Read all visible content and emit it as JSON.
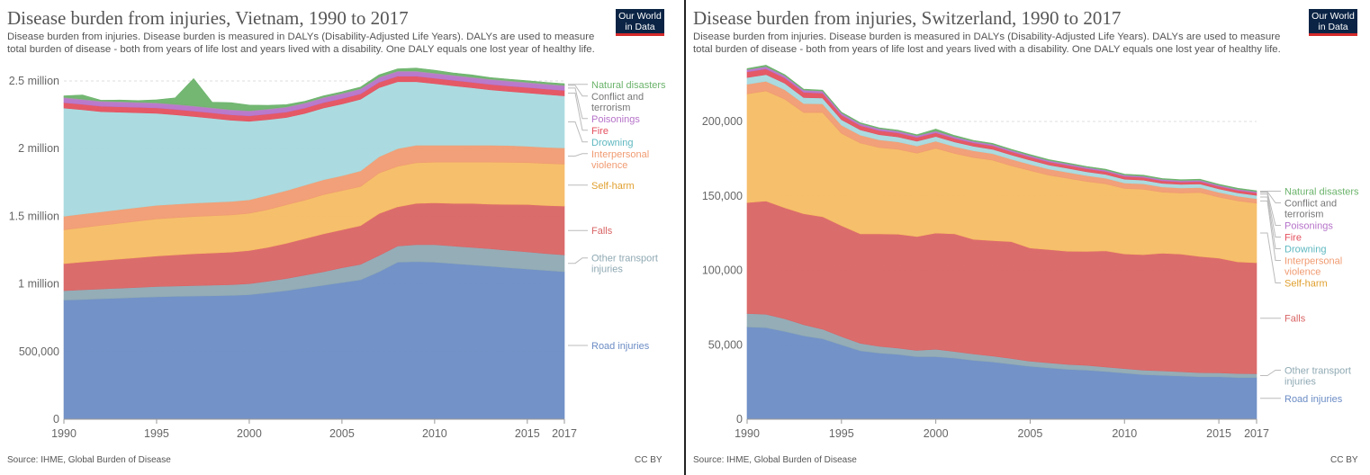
{
  "chart_data": [
    {
      "type": "area",
      "stacked": true,
      "title": "Disease burden from injuries, Vietnam, 1990 to 2017",
      "subtitle": "Disease burden from injuries. Disease burden is measured in DALYs (Disability-Adjusted Life Years). DALYs are used to measure total burden of disease - both from years of life lost and years lived with a disability. One DALY equals one lost year of healthy life.",
      "source": "Source: IHME, Global Burden of Disease",
      "license": "CC BY",
      "logo": [
        "Our World",
        "in Data"
      ],
      "ylim": [
        0,
        2600000
      ],
      "yticks": [
        0,
        500000,
        1000000,
        1500000,
        2000000,
        2500000
      ],
      "ytick_labels": [
        "0",
        "500,000",
        "1 million",
        "1.5 million",
        "2 million",
        "2.5 million"
      ],
      "xlim": [
        1990,
        2017
      ],
      "xticks": [
        1990,
        1995,
        2000,
        2005,
        2010,
        2015,
        2017
      ],
      "xtick_labels": [
        "1990",
        "1995",
        "2000",
        "2005",
        "2010",
        "2015",
        "2017"
      ],
      "grid": true,
      "x": [
        1990,
        1991,
        1992,
        1993,
        1994,
        1995,
        1996,
        1997,
        1998,
        1999,
        2000,
        2001,
        2002,
        2003,
        2004,
        2005,
        2006,
        2007,
        2008,
        2009,
        2010,
        2011,
        2012,
        2013,
        2014,
        2015,
        2016,
        2017
      ],
      "series": [
        {
          "name": "Road injuries",
          "color": "#6b8cc4",
          "values": [
            880000,
            885000,
            890000,
            895000,
            900000,
            905000,
            908000,
            910000,
            912000,
            915000,
            920000,
            935000,
            950000,
            970000,
            990000,
            1010000,
            1030000,
            1090000,
            1160000,
            1165000,
            1160000,
            1150000,
            1140000,
            1130000,
            1120000,
            1110000,
            1100000,
            1090000
          ]
        },
        {
          "name": "Other transport injuries",
          "color": "#8fa9b3",
          "values": [
            70000,
            72000,
            73000,
            74000,
            75000,
            76000,
            77000,
            78000,
            79000,
            80000,
            82000,
            85000,
            90000,
            95000,
            100000,
            110000,
            115000,
            120000,
            120000,
            125000,
            130000,
            130000,
            130000,
            130000,
            128000,
            127000,
            125000,
            125000
          ]
        },
        {
          "name": "Falls",
          "color": "#d96464",
          "values": [
            200000,
            205000,
            210000,
            215000,
            220000,
            225000,
            230000,
            235000,
            238000,
            240000,
            245000,
            250000,
            260000,
            270000,
            280000,
            280000,
            285000,
            310000,
            290000,
            305000,
            310000,
            315000,
            325000,
            330000,
            340000,
            350000,
            355000,
            360000
          ]
        },
        {
          "name": "Self-harm",
          "color": "#f6bc64",
          "values": [
            250000,
            255000,
            260000,
            265000,
            270000,
            275000,
            275000,
            275000,
            275000,
            275000,
            275000,
            280000,
            285000,
            285000,
            290000,
            290000,
            290000,
            300000,
            300000,
            300000,
            300000,
            305000,
            305000,
            310000,
            310000,
            310000,
            310000,
            310000
          ]
        },
        {
          "name": "Interpersonal violence",
          "color": "#f09b72",
          "values": [
            100000,
            100000,
            100000,
            100000,
            100000,
            100000,
            100000,
            100000,
            100000,
            100000,
            100000,
            105000,
            105000,
            110000,
            110000,
            110000,
            115000,
            120000,
            130000,
            130000,
            125000,
            125000,
            125000,
            125000,
            125000,
            120000,
            120000,
            120000
          ]
        },
        {
          "name": "Drowning",
          "color": "#a6d9de",
          "values": [
            800000,
            770000,
            740000,
            720000,
            700000,
            680000,
            660000,
            640000,
            620000,
            600000,
            580000,
            560000,
            540000,
            530000,
            530000,
            530000,
            530000,
            510000,
            495000,
            470000,
            455000,
            440000,
            425000,
            410000,
            400000,
            395000,
            390000,
            385000
          ]
        },
        {
          "name": "Fire",
          "color": "#e4505e",
          "values": [
            40000,
            40000,
            40000,
            40000,
            40000,
            40000,
            40000,
            40000,
            40000,
            40000,
            40000,
            40000,
            40000,
            40000,
            40000,
            40000,
            40000,
            40000,
            40000,
            40000,
            40000,
            40000,
            40000,
            40000,
            40000,
            40000,
            40000,
            40000
          ]
        },
        {
          "name": "Poisonings",
          "color": "#b673c9",
          "values": [
            35000,
            35000,
            35000,
            35000,
            35000,
            35000,
            35000,
            35000,
            35000,
            35000,
            35000,
            35000,
            35000,
            35000,
            35000,
            35000,
            35000,
            35000,
            35000,
            35000,
            35000,
            35000,
            35000,
            35000,
            35000,
            35000,
            35000,
            35000
          ]
        },
        {
          "name": "Conflict and terrorism",
          "color": "#a0a0a0",
          "values": [
            5000,
            5000,
            5000,
            5000,
            5000,
            5000,
            5000,
            5000,
            5000,
            5000,
            5000,
            5000,
            5000,
            5000,
            5000,
            5000,
            5000,
            5000,
            5000,
            5000,
            5000,
            5000,
            5000,
            5000,
            5000,
            5000,
            5000,
            5000
          ]
        },
        {
          "name": "Natural disasters",
          "color": "#6bb36b",
          "values": [
            10000,
            30000,
            5000,
            10000,
            10000,
            20000,
            45000,
            200000,
            40000,
            50000,
            40000,
            25000,
            15000,
            10000,
            10000,
            10000,
            10000,
            15000,
            15000,
            20000,
            20000,
            15000,
            15000,
            10000,
            10000,
            10000,
            10000,
            10000
          ]
        }
      ],
      "legend_placement": "right"
    },
    {
      "type": "area",
      "stacked": true,
      "title": "Disease burden from injuries, Switzerland, 1990 to 2017",
      "subtitle": "Disease burden from injuries. Disease burden is measured in DALYs (Disability-Adjusted Life Years). DALYs are used to measure total burden of disease - both from years of life lost and years lived with a disability. One DALY equals one lost year of healthy life.",
      "source": "Source: IHME, Global Burden of Disease",
      "license": "CC BY",
      "logo": [
        "Our World",
        "in Data"
      ],
      "ylim": [
        0,
        235000
      ],
      "yticks": [
        0,
        50000,
        100000,
        150000,
        200000
      ],
      "ytick_labels": [
        "0",
        "50,000",
        "100,000",
        "150,000",
        "200,000"
      ],
      "xlim": [
        1990,
        2017
      ],
      "xticks": [
        1990,
        1995,
        2000,
        2005,
        2010,
        2015,
        2017
      ],
      "xtick_labels": [
        "1990",
        "1995",
        "2000",
        "2005",
        "2010",
        "2015",
        "2017"
      ],
      "grid": true,
      "x": [
        1990,
        1991,
        1992,
        1993,
        1994,
        1995,
        1996,
        1997,
        1998,
        1999,
        2000,
        2001,
        2002,
        2003,
        2004,
        2005,
        2006,
        2007,
        2008,
        2009,
        2010,
        2011,
        2012,
        2013,
        2014,
        2015,
        2016,
        2017
      ],
      "series": [
        {
          "name": "Road injuries",
          "color": "#6b8cc4",
          "values": [
            62000,
            61500,
            59000,
            56000,
            54000,
            50000,
            46000,
            44500,
            43500,
            42000,
            42000,
            41000,
            39500,
            38500,
            37000,
            35500,
            34500,
            33500,
            33000,
            32000,
            31000,
            30000,
            29500,
            29000,
            28500,
            28500,
            28000,
            28000
          ]
        },
        {
          "name": "Other transport injuries",
          "color": "#8fa9b3",
          "values": [
            9000,
            9000,
            8500,
            7500,
            6500,
            5500,
            5000,
            4500,
            4300,
            4200,
            5000,
            4500,
            4300,
            4000,
            3800,
            3500,
            3400,
            3300,
            3200,
            3100,
            3000,
            3000,
            3000,
            2900,
            2800,
            2700,
            2700,
            2600
          ]
        },
        {
          "name": "Falls",
          "color": "#d96464",
          "values": [
            74500,
            76000,
            74500,
            74500,
            75500,
            74500,
            73500,
            75500,
            76500,
            76500,
            78000,
            79000,
            77000,
            77500,
            78500,
            76000,
            76000,
            76000,
            76500,
            78000,
            77000,
            77500,
            79000,
            79000,
            78000,
            77000,
            75000,
            74500
          ]
        },
        {
          "name": "Self-harm",
          "color": "#f6bc64",
          "values": [
            73000,
            74000,
            73000,
            68000,
            70000,
            62000,
            61000,
            58000,
            57000,
            56000,
            57000,
            54000,
            55000,
            54000,
            51000,
            52000,
            50000,
            49000,
            47000,
            45000,
            44000,
            44000,
            41000,
            41000,
            43000,
            41000,
            41000,
            40000
          ]
        },
        {
          "name": "Interpersonal violence",
          "color": "#f09b72",
          "values": [
            6500,
            6500,
            6300,
            6000,
            5800,
            5500,
            5300,
            5200,
            5000,
            4800,
            4700,
            4600,
            4500,
            4400,
            4300,
            4200,
            4100,
            4000,
            3900,
            3800,
            3700,
            3600,
            3500,
            3400,
            3300,
            3200,
            3100,
            3000
          ]
        },
        {
          "name": "Drowning",
          "color": "#a6d9de",
          "values": [
            4500,
            4500,
            4300,
            4100,
            3900,
            3700,
            3500,
            3400,
            3300,
            3200,
            3200,
            3100,
            3000,
            2900,
            2900,
            2800,
            2700,
            2700,
            2600,
            2600,
            2500,
            2500,
            2400,
            2400,
            2400,
            2300,
            2300,
            2300
          ]
        },
        {
          "name": "Fire",
          "color": "#e4505e",
          "values": [
            3800,
            3800,
            3600,
            3500,
            3300,
            3100,
            2900,
            2800,
            2700,
            2600,
            2500,
            2400,
            2300,
            2300,
            2200,
            2100,
            2100,
            2000,
            2000,
            1900,
            1900,
            1800,
            1800,
            1700,
            1700,
            1700,
            1600,
            1600
          ]
        },
        {
          "name": "Poisonings",
          "color": "#b673c9",
          "values": [
            1500,
            1500,
            1450,
            1400,
            1350,
            1300,
            1250,
            1200,
            1150,
            1100,
            1100,
            1050,
            1000,
            1000,
            950,
            950,
            900,
            900,
            900,
            850,
            850,
            800,
            800,
            800,
            800,
            750,
            750,
            750
          ]
        },
        {
          "name": "Conflict and terrorism",
          "color": "#a0a0a0",
          "values": [
            200,
            200,
            200,
            200,
            200,
            200,
            200,
            200,
            200,
            200,
            200,
            200,
            200,
            200,
            200,
            200,
            200,
            200,
            200,
            200,
            200,
            200,
            200,
            200,
            200,
            200,
            200,
            200
          ]
        },
        {
          "name": "Natural disasters",
          "color": "#6bb36b",
          "values": [
            500,
            800,
            600,
            500,
            500,
            500,
            500,
            500,
            500,
            500,
            1200,
            700,
            500,
            500,
            500,
            500,
            500,
            500,
            500,
            500,
            500,
            500,
            500,
            500,
            500,
            500,
            500,
            500
          ]
        }
      ],
      "legend_placement": "right"
    }
  ]
}
